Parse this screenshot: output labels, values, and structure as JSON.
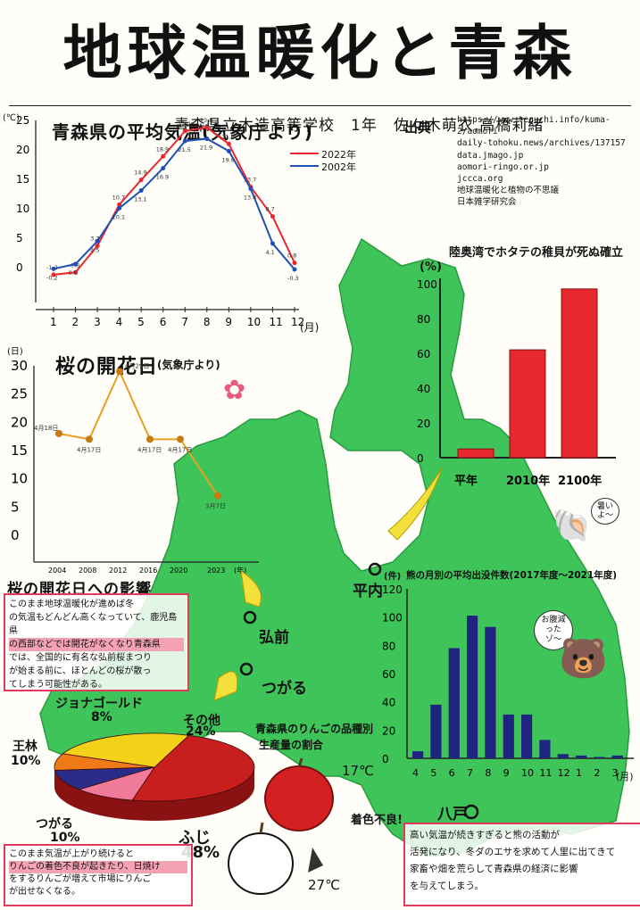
{
  "header": {
    "title": "地球温暖化と青森",
    "author": "青森県立木造高等学校　1年　佐々木萌衣,高橋莉緒"
  },
  "sources": {
    "label": "出典",
    "lines": [
      "https://www.teguchi.info/kuma-2/aomori",
      "daily-tohoku.news/archives/137157",
      "data.jmago.jp",
      "aomori-ringo.or.jp",
      "jccca.org",
      "地球温暖化と植物の不思議",
      "日本雑学研究会"
    ]
  },
  "temp_chart": {
    "title": "青森県の平均気温(気象庁より)",
    "unit_y": "(℃)",
    "unit_x": "(月)",
    "legend": [
      "2022年",
      "2002年"
    ]
  },
  "sakura_chart": {
    "title": "桜の開花日",
    "subtitle": "(気象庁より)",
    "unit_y": "(日)",
    "point_labels": [
      "4月18日",
      "4月17日",
      "4月29日",
      "4月17日",
      "4月17日",
      "3月7日"
    ]
  },
  "scallop_chart": {
    "title": "陸奥湾でホタテの稚貝が死ぬ確立",
    "unit_y": "(%)"
  },
  "bear_chart": {
    "title": "熊の月別の平均出没件数(2017年度〜2021年度)",
    "unit_y": "(件)",
    "unit_x": "(月)"
  },
  "apple_chart": {
    "title_line1": "青森県のりんごの品種別",
    "title_line2": "生産量の割合",
    "labels": {
      "jonagold": "ジョナゴールド",
      "jonagold_pct": "8%",
      "other": "その他",
      "other_pct": "24%",
      "orin": "王林",
      "orin_pct": "10%",
      "tsugaru": "つがる",
      "tsugaru_pct": "10%",
      "fuji": "ふじ",
      "fuji_pct": "48%"
    }
  },
  "sakura_impact": {
    "heading": "桜の開花日への影響",
    "lines": [
      "このまま地球温暖化が進めば冬",
      "の気温もどんどん高くなっていて、鹿児島県",
      "の西部などでは開花がなくなり青森県",
      "では、全国的に有名な弘前桜まつり",
      "が始まる前に、ほとんどの桜が散っ",
      "てしまう可能性がある。"
    ]
  },
  "apple_impact": {
    "lines": [
      "このまま気温が上がり続けると",
      "りんごの着色不良が起きたり、日焼け",
      "をするりんごが増えて市場にりんご",
      "が出せなくなる。"
    ]
  },
  "bear_impact": {
    "lines": [
      "高い気温が続きすぎると熊の活動が",
      "活発になり、冬ダのエサを求めて人里に出てきて",
      "家畜や畑を荒らして青森県の経済に影響",
      "を与えてしまう。"
    ]
  },
  "map_labels": {
    "hirosaki": "弘前",
    "tsugaru": "つがる",
    "hiranai": "平内",
    "hachinohe": "八戸",
    "temp_17": "17℃",
    "temp_27": "27℃",
    "burn": "着色不良!"
  },
  "speech": {
    "scallop": "暑いよ〜",
    "bear": "お腹減ったゾ〜"
  },
  "chart_data": [
    {
      "type": "line",
      "title": "青森県の平均気温(気象庁より)",
      "xlabel": "(月)",
      "ylabel": "(℃)",
      "x": [
        1,
        2,
        3,
        4,
        5,
        6,
        7,
        8,
        9,
        10,
        11,
        12
      ],
      "ylim": [
        -5,
        25
      ],
      "series": [
        {
          "name": "2022年",
          "color": "#e8282f",
          "values": [
            -1.2,
            -0.8,
            3.7,
            10.7,
            14.9,
            18.9,
            23.2,
            23.8,
            21.0,
            13.7,
            8.7,
            0.8
          ]
        },
        {
          "name": "2002年",
          "color": "#1f4fb5",
          "values": [
            -0.2,
            0.6,
            4.5,
            10.1,
            13.1,
            16.9,
            21.5,
            21.9,
            19.8,
            13.4,
            4.1,
            -0.3
          ]
        }
      ],
      "point_labels_2022": [
        "-1.2",
        "-0.8",
        "3.7",
        "10.7",
        "14.9",
        "18.9",
        "23.2",
        "23.8",
        "21.0",
        "13.7",
        "8.7",
        "0.8"
      ],
      "point_labels_2002": [
        "-0.2",
        "0.6",
        "4.5",
        "10.1",
        "13.1",
        "16.9",
        "21.5",
        "21.9",
        "19.8",
        "13.4",
        "4.1",
        "-0.3"
      ]
    },
    {
      "type": "line",
      "title": "桜の開花日",
      "ylabel": "(日)",
      "categories": [
        "2004",
        "2008",
        "2012",
        "2016",
        "2020",
        "2023"
      ],
      "x_axis_ticks": [
        "2004",
        "2008",
        "2012",
        "2016",
        "2020",
        "2023",
        "(年)"
      ],
      "y_ticks": [
        0,
        5,
        10,
        15,
        20,
        25,
        30
      ],
      "ylim": [
        0,
        30
      ],
      "series": [
        {
          "name": "",
          "color": "#e8a020",
          "values": [
            18,
            17,
            29,
            17,
            17,
            7
          ]
        }
      ]
    },
    {
      "type": "bar",
      "title": "陸奥湾でホタテの稚貝が死ぬ確立",
      "ylabel": "(%)",
      "categories": [
        "平年",
        "2010年",
        "2100年"
      ],
      "values": [
        5,
        62,
        97
      ],
      "ylim": [
        0,
        100
      ],
      "color": "#e8282f"
    },
    {
      "type": "bar",
      "title": "熊の月別の平均出没件数(2017年度〜2021年度)",
      "ylabel": "(件)",
      "xlabel": "(月)",
      "categories": [
        "4",
        "5",
        "6",
        "7",
        "8",
        "9",
        "10",
        "11",
        "12",
        "1",
        "2",
        "3"
      ],
      "values": [
        5,
        38,
        78,
        101,
        93,
        31,
        31,
        13,
        3,
        2,
        1,
        2
      ],
      "ylim": [
        0,
        120
      ],
      "color": "#1e2480"
    },
    {
      "type": "pie",
      "title": "青森県のりんごの品種別生産量の割合",
      "labels": [
        "ふじ",
        "つがる",
        "王林",
        "ジョナゴールド",
        "その他"
      ],
      "values": [
        48,
        10,
        10,
        8,
        24
      ],
      "colors": [
        "#c81e1e",
        "#f07a9a",
        "#2b2c88",
        "#f07a18",
        "#f4d21a"
      ]
    }
  ]
}
